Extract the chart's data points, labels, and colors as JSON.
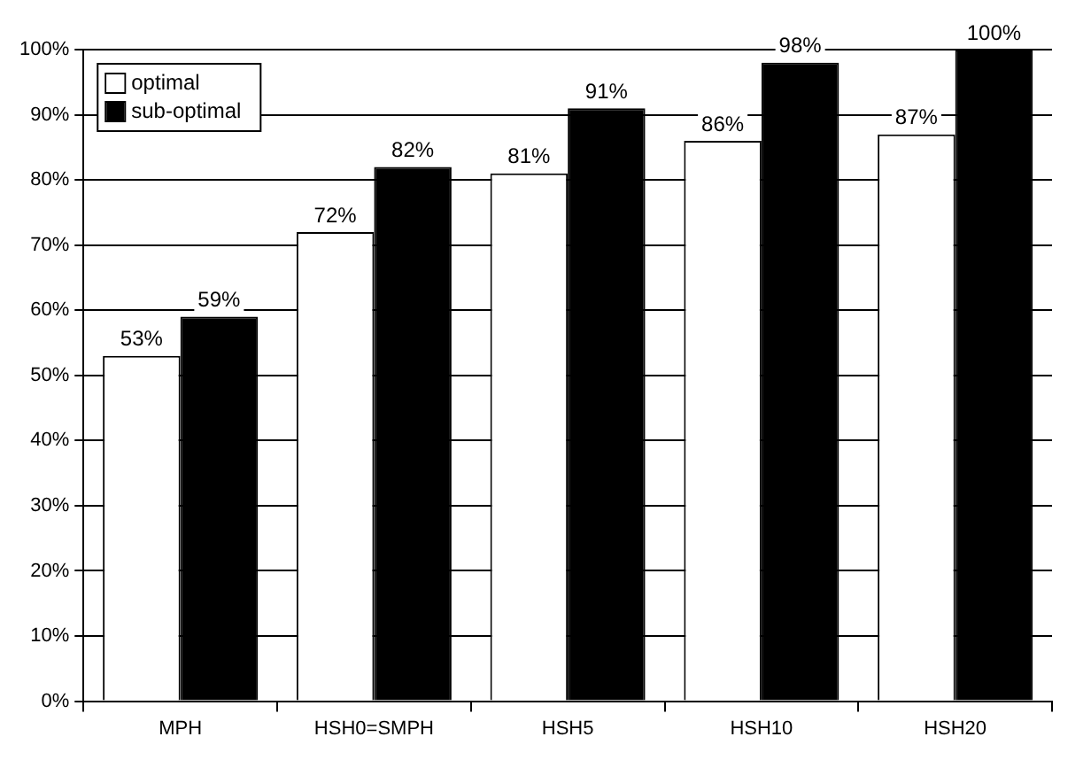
{
  "chart_data": {
    "type": "bar",
    "categories": [
      "MPH",
      "HSH0=SMPH",
      "HSH5",
      "HSH10",
      "HSH20"
    ],
    "series": [
      {
        "name": "optimal",
        "color": "#ffffff",
        "values": [
          53,
          72,
          81,
          86,
          87
        ],
        "value_labels": [
          "53%",
          "72%",
          "81%",
          "86%",
          "87%"
        ]
      },
      {
        "name": "sub-optimal",
        "color": "#000000",
        "values": [
          59,
          82,
          91,
          98,
          100
        ],
        "value_labels": [
          "59%",
          "82%",
          "91%",
          "98%",
          "100%"
        ]
      }
    ],
    "ylim": [
      0,
      100
    ],
    "yticks": [
      {
        "value": 0,
        "label": "0%"
      },
      {
        "value": 10,
        "label": "10%"
      },
      {
        "value": 20,
        "label": "20%"
      },
      {
        "value": 30,
        "label": "30%"
      },
      {
        "value": 40,
        "label": "40%"
      },
      {
        "value": 50,
        "label": "50%"
      },
      {
        "value": 60,
        "label": "60%"
      },
      {
        "value": 70,
        "label": "70%"
      },
      {
        "value": 80,
        "label": "80%"
      },
      {
        "value": 90,
        "label": "90%"
      },
      {
        "value": 100,
        "label": "100%"
      }
    ],
    "grid": "y",
    "legend": "top left"
  }
}
